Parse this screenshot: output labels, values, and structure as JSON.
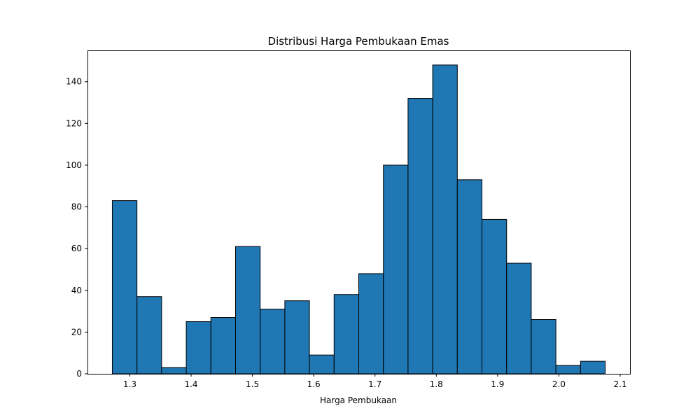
{
  "chart_data": {
    "type": "bar",
    "title": "Distribusi Harga Pembukaan Emas",
    "xlabel": "Harga Pembukaan",
    "ylabel": "",
    "bin_edges": [
      1.2715,
      1.3117,
      1.3519,
      1.3921,
      1.4323,
      1.4725,
      1.5127,
      1.5529,
      1.5931,
      1.6333,
      1.6735,
      1.7137,
      1.7539,
      1.7941,
      1.8343,
      1.8745,
      1.9147,
      1.9549,
      1.9951,
      2.0353,
      2.0755
    ],
    "values": [
      83,
      37,
      3,
      25,
      27,
      61,
      31,
      35,
      9,
      38,
      48,
      100,
      132,
      148,
      93,
      74,
      53,
      26,
      4,
      6
    ],
    "xlim": [
      1.231,
      2.116
    ],
    "ylim": [
      0,
      155
    ],
    "xticks": [
      1.3,
      1.4,
      1.5,
      1.6,
      1.7,
      1.8,
      1.9,
      2.0,
      2.1
    ],
    "xtick_labels": [
      "1.3",
      "1.4",
      "1.5",
      "1.6",
      "1.7",
      "1.8",
      "1.9",
      "2.0",
      "2.1"
    ],
    "yticks": [
      0,
      20,
      40,
      60,
      80,
      100,
      120,
      140
    ],
    "ytick_labels": [
      "0",
      "20",
      "40",
      "60",
      "80",
      "100",
      "120",
      "140"
    ],
    "bar_color": "#1f77b4",
    "edge_color": "#000000",
    "grid": false,
    "legend": "none"
  }
}
